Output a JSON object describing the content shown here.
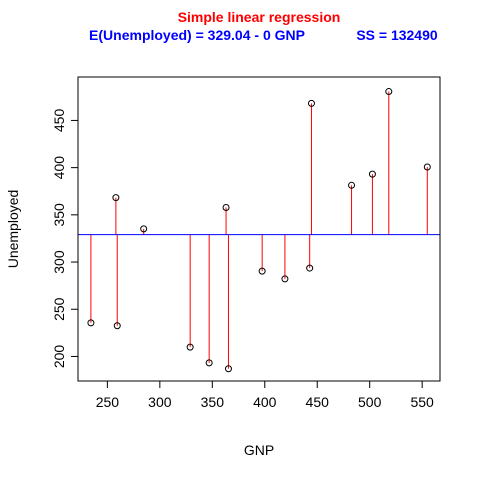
{
  "chart_data": {
    "type": "scatter",
    "title": "Simple linear regression",
    "subtitle_equation": "E(Unemployed) = 329.04 - 0 GNP",
    "subtitle_ss": "SS = 132490",
    "xlabel": "GNP",
    "ylabel": "Unemployed",
    "xlim": [
      222,
      567
    ],
    "ylim": [
      174,
      496
    ],
    "xticks": [
      250,
      300,
      350,
      400,
      450,
      500,
      550
    ],
    "yticks": [
      200,
      250,
      300,
      350,
      400,
      450
    ],
    "regression_line": {
      "intercept": 329.04,
      "slope": 0
    },
    "points": [
      {
        "x": 234.3,
        "y": 235.6
      },
      {
        "x": 259.4,
        "y": 232.5
      },
      {
        "x": 258.1,
        "y": 368.2
      },
      {
        "x": 284.6,
        "y": 335.1
      },
      {
        "x": 328.9,
        "y": 209.9
      },
      {
        "x": 347.0,
        "y": 193.2
      },
      {
        "x": 365.4,
        "y": 187.0
      },
      {
        "x": 363.1,
        "y": 357.8
      },
      {
        "x": 397.5,
        "y": 290.4
      },
      {
        "x": 419.2,
        "y": 282.2
      },
      {
        "x": 442.8,
        "y": 293.6
      },
      {
        "x": 444.5,
        "y": 468.1
      },
      {
        "x": 482.7,
        "y": 381.3
      },
      {
        "x": 502.6,
        "y": 393.1
      },
      {
        "x": 518.2,
        "y": 480.6
      },
      {
        "x": 554.9,
        "y": 400.7
      }
    ],
    "colors": {
      "title": "#ff0000",
      "subtitle": "#0000ff",
      "regression_line": "#0000ff",
      "residuals": "#ff0000",
      "points": "#000000"
    },
    "grid": false,
    "legend": "none"
  }
}
